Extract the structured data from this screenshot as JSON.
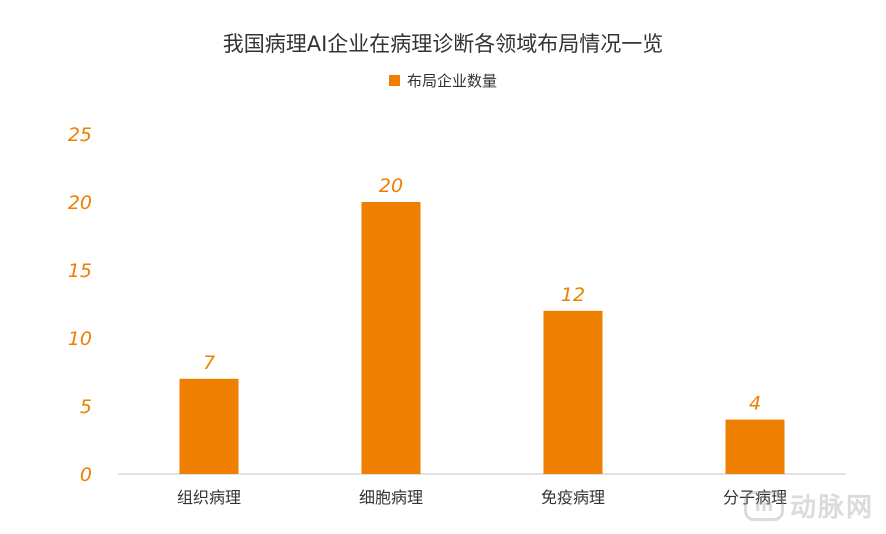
{
  "chart_data": {
    "type": "bar",
    "title": "我国病理AI企业在病理诊断各领域布局情况一览",
    "categories": [
      "组织病理",
      "细胞病理",
      "免疫病理",
      "分子病理"
    ],
    "series": [
      {
        "name": "布局企业数量",
        "values": [
          7,
          20,
          12,
          4
        ]
      }
    ],
    "yticks": [
      "0",
      "5",
      "10",
      "15",
      "20",
      "25"
    ],
    "ylim": [
      0,
      25
    ],
    "grid": false,
    "legend_position": "top-center",
    "colors": {
      "bar": "#EE7F00",
      "tick": "#EE7F00",
      "axis": "#D9D9D9",
      "text": "#333333"
    }
  },
  "watermark": {
    "logo_text": "m",
    "text": "动脉网"
  }
}
